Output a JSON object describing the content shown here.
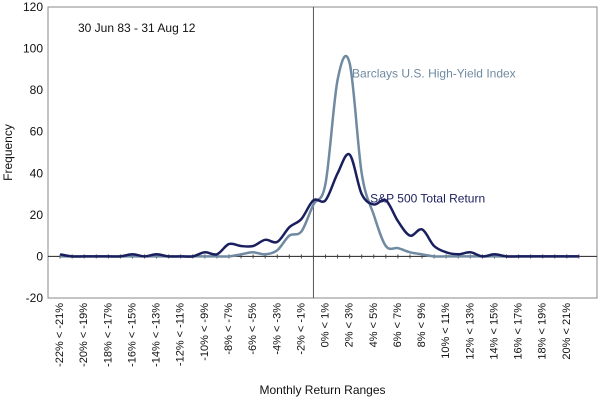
{
  "chart_data": {
    "type": "line",
    "title": "",
    "annotation": "30 Jun 83 - 31 Aug 12",
    "xlabel": "Monthly Return Ranges",
    "ylabel": "Frequency",
    "ylim": [
      -20,
      120
    ],
    "yticks": [
      -20,
      0,
      20,
      40,
      60,
      80,
      100,
      120
    ],
    "x": [
      -22,
      -21,
      -20,
      -19,
      -18,
      -17,
      -16,
      -15,
      -14,
      -13,
      -12,
      -11,
      -10,
      -9,
      -8,
      -7,
      -6,
      -5,
      -4,
      -3,
      -2,
      -1,
      0,
      1,
      2,
      3,
      4,
      5,
      6,
      7,
      8,
      9,
      10,
      11,
      12,
      13,
      14,
      15,
      16,
      17,
      18,
      19,
      20,
      21
    ],
    "xtick_labels": [
      "-22% < -21%",
      "-20% < -19%",
      "-18% < -17%",
      "-16% < -15%",
      "-14% < -13%",
      "-12% < -11%",
      "-10% < -9%",
      "-8% < -7%",
      "-6% < -5%",
      "-4% < -3%",
      "-2% < -1%",
      "0% < 1%",
      "2% < 3%",
      "4% < 5%",
      "6% < 7%",
      "8% < 9%",
      "10% < 11%",
      "12% < 13%",
      "14% < 15%",
      "16% < 17%",
      "18% < 19%",
      "20% < 21%"
    ],
    "xtick_values": [
      -22,
      -20,
      -18,
      -16,
      -14,
      -12,
      -10,
      -8,
      -6,
      -4,
      -2,
      0,
      2,
      4,
      6,
      8,
      10,
      12,
      14,
      16,
      18,
      20
    ],
    "vline_x": -1,
    "series": [
      {
        "name": "Barclays U.S. High-Yield Index",
        "color": "#6f8aa1",
        "values": [
          0,
          0,
          0,
          0,
          0,
          0,
          0,
          0,
          0,
          0,
          0,
          0,
          0,
          0,
          0,
          1,
          2,
          1,
          3,
          10,
          12,
          25,
          35,
          85,
          93,
          40,
          20,
          5,
          4,
          2,
          1,
          0,
          0,
          0,
          0,
          0,
          0,
          0,
          0,
          0,
          0,
          0,
          0,
          0
        ]
      },
      {
        "name": "S&P 500 Total Return",
        "color": "#1a1f5e",
        "values": [
          1,
          0,
          0,
          0,
          0,
          0,
          1,
          0,
          1,
          0,
          0,
          0,
          2,
          1,
          6,
          5,
          5,
          8,
          7,
          14,
          18,
          27,
          27,
          40,
          49,
          30,
          25,
          27,
          17,
          10,
          13,
          5,
          2,
          1,
          2,
          0,
          1,
          0,
          0,
          0,
          0,
          0,
          0,
          0
        ]
      }
    ],
    "series_label_anchor": [
      {
        "x": 2.2,
        "y": 86
      },
      {
        "x": 3.7,
        "y": 26
      }
    ],
    "grid": false,
    "legend": "inline labels"
  }
}
